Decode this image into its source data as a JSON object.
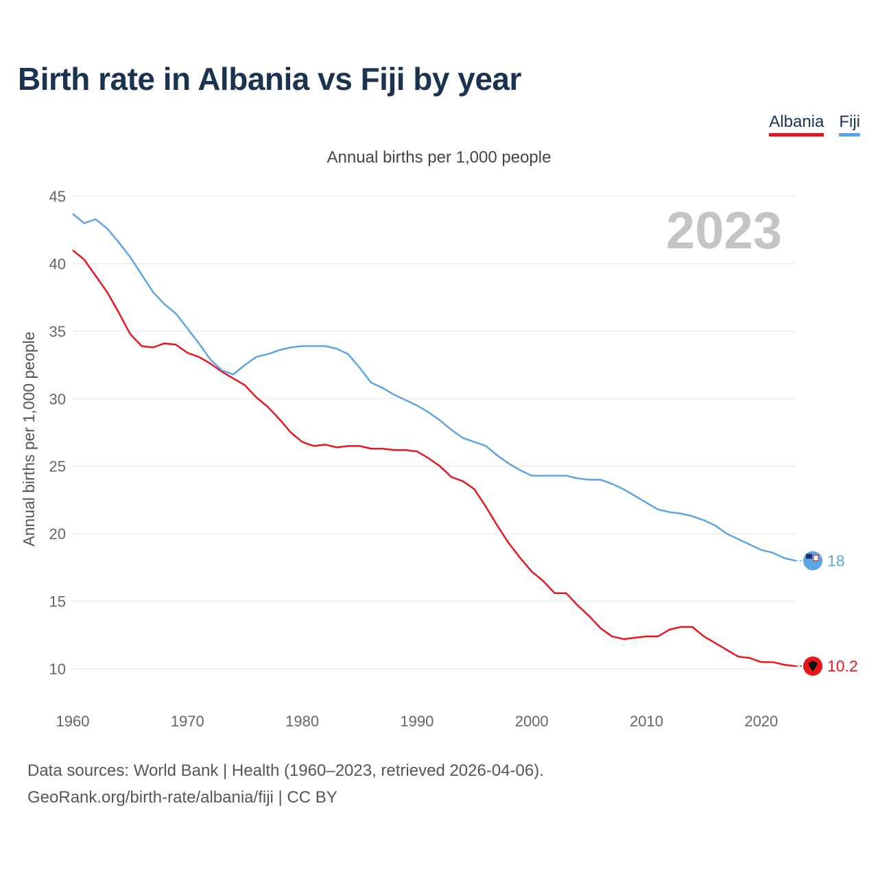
{
  "title": "Birth rate in Albania vs Fiji by year",
  "legend": [
    {
      "label": "Albania",
      "color": "#e8151b"
    },
    {
      "label": "Fiji",
      "color": "#5ba5e4"
    }
  ],
  "source": {
    "line1": "Data sources: World Bank | Health (1960–2023, retrieved 2026-04-06).",
    "line2": "GeoRank.org/birth-rate/albania/fiji | CC BY"
  },
  "chart_data": {
    "type": "line",
    "title": "Birth rate in Albania vs Fiji by year",
    "subtitle": "Annual births per 1,000 people",
    "xlabel": "",
    "ylabel": "Annual births per 1,000 people",
    "year_label": "2023",
    "xlim": [
      1960,
      2023
    ],
    "ylim": [
      10,
      45
    ],
    "x_ticks": [
      1960,
      1970,
      1980,
      1990,
      2000,
      2010,
      2020
    ],
    "y_ticks": [
      10,
      15,
      20,
      25,
      30,
      35,
      40,
      45
    ],
    "grid": true,
    "x": [
      1960,
      1961,
      1962,
      1963,
      1964,
      1965,
      1966,
      1967,
      1968,
      1969,
      1970,
      1971,
      1972,
      1973,
      1974,
      1975,
      1976,
      1977,
      1978,
      1979,
      1980,
      1981,
      1982,
      1983,
      1984,
      1985,
      1986,
      1987,
      1988,
      1989,
      1990,
      1991,
      1992,
      1993,
      1994,
      1995,
      1996,
      1997,
      1998,
      1999,
      2000,
      2001,
      2002,
      2003,
      2004,
      2005,
      2006,
      2007,
      2008,
      2009,
      2010,
      2011,
      2012,
      2013,
      2014,
      2015,
      2016,
      2017,
      2018,
      2019,
      2020,
      2021,
      2022,
      2023
    ],
    "series": [
      {
        "name": "Albania",
        "color": "#e8151b",
        "end_label": "10.2",
        "values": [
          41.0,
          40.3,
          39.1,
          37.9,
          36.4,
          34.8,
          33.9,
          33.8,
          34.1,
          34.0,
          33.4,
          33.1,
          32.6,
          32.0,
          31.5,
          31.0,
          30.1,
          29.4,
          28.5,
          27.5,
          26.8,
          26.5,
          26.6,
          26.4,
          26.5,
          26.5,
          26.3,
          26.3,
          26.2,
          26.2,
          26.1,
          25.6,
          25.0,
          24.2,
          23.9,
          23.3,
          22.0,
          20.6,
          19.3,
          18.2,
          17.2,
          16.5,
          15.6,
          15.6,
          14.7,
          13.9,
          13.0,
          12.4,
          12.2,
          12.3,
          12.4,
          12.4,
          12.9,
          13.1,
          13.1,
          12.4,
          11.9,
          11.4,
          10.9,
          10.8,
          10.5,
          10.5,
          10.3,
          10.2
        ]
      },
      {
        "name": "Fiji",
        "color": "#5ba5e4",
        "end_label": "18",
        "values": [
          43.7,
          43.0,
          43.3,
          42.6,
          41.6,
          40.5,
          39.2,
          37.9,
          37.0,
          36.3,
          35.2,
          34.1,
          32.9,
          32.1,
          31.8,
          32.5,
          33.1,
          33.3,
          33.6,
          33.8,
          33.9,
          33.9,
          33.9,
          33.7,
          33.3,
          32.3,
          31.2,
          30.8,
          30.3,
          29.9,
          29.5,
          29.0,
          28.4,
          27.7,
          27.1,
          26.8,
          26.5,
          25.8,
          25.2,
          24.7,
          24.3,
          24.3,
          24.3,
          24.3,
          24.1,
          24.0,
          24.0,
          23.7,
          23.3,
          22.8,
          22.3,
          21.8,
          21.6,
          21.5,
          21.3,
          21.0,
          20.6,
          20.0,
          19.6,
          19.2,
          18.8,
          18.6,
          18.2,
          18.0
        ]
      }
    ]
  }
}
